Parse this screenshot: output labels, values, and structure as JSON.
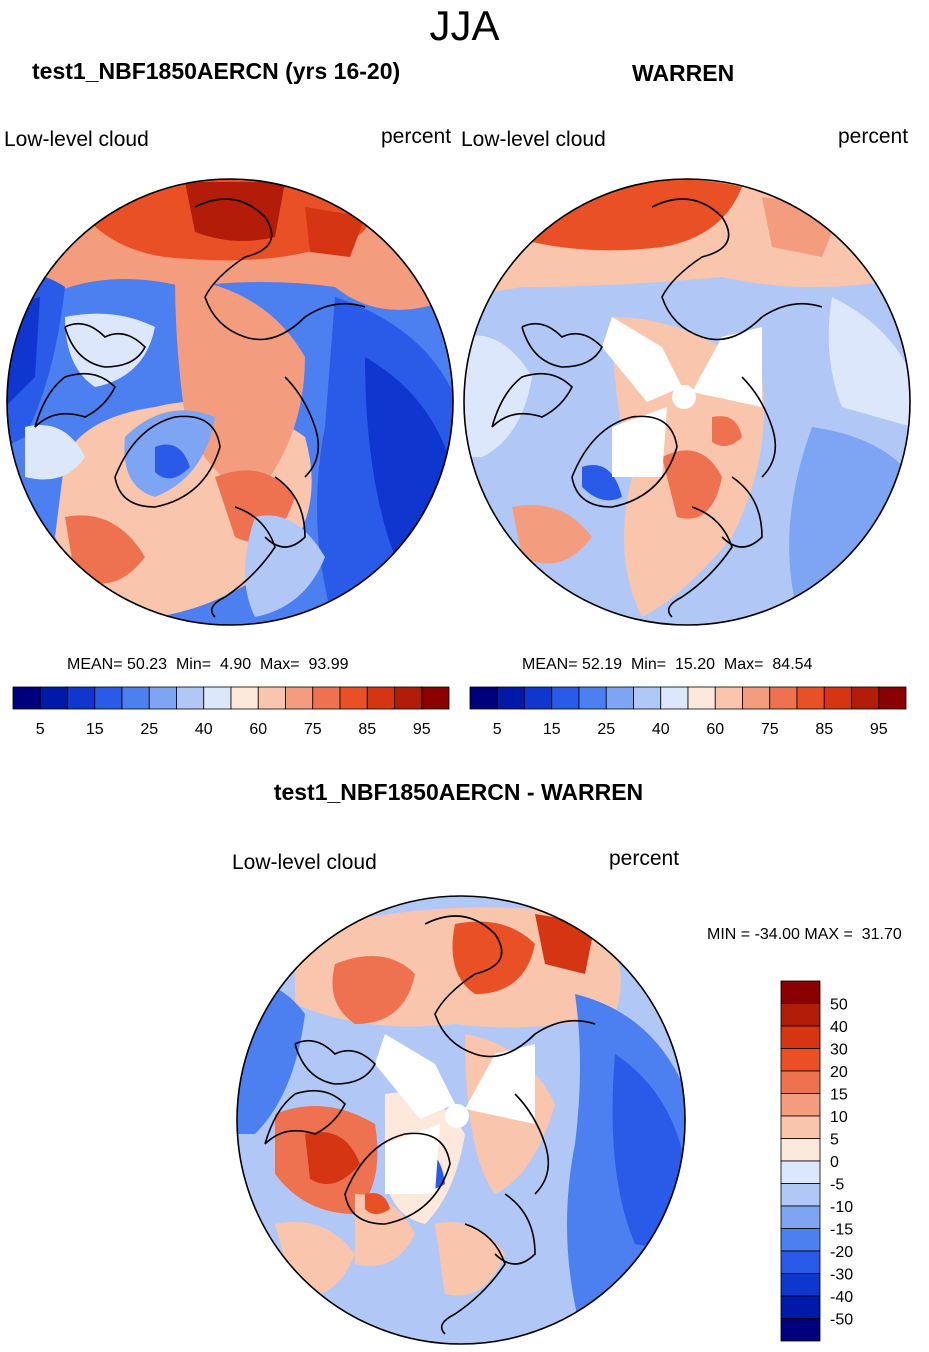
{
  "season": "JJA",
  "panels": [
    {
      "title": "test1_NBF1850AERCN (yrs 16-20)",
      "variable": "Low-level cloud",
      "units": "percent",
      "stats": {
        "mean": "50.23",
        "min": "4.90",
        "max": "93.99"
      }
    },
    {
      "title": "WARREN",
      "variable": "Low-level cloud",
      "units": "percent",
      "stats": {
        "mean": "52.19",
        "min": "15.20",
        "max": "84.54"
      }
    }
  ],
  "diff_panel": {
    "title": "test1_NBF1850AERCN - WARREN",
    "variable": "Low-level cloud",
    "units": "percent",
    "minmax": "MIN = -34.00 MAX =  31.70"
  },
  "colorbar_top": {
    "colors": [
      "#00007f",
      "#0019a8",
      "#0f37d0",
      "#2a5be8",
      "#4c7ff0",
      "#7ea4f4",
      "#b1c8f7",
      "#dde7fb",
      "#fde8dc",
      "#fac5ad",
      "#f49c7e",
      "#ee7150",
      "#ea5026",
      "#d53512",
      "#b21c08",
      "#8b0000"
    ],
    "tick_labels": [
      "5",
      "15",
      "25",
      "40",
      "60",
      "75",
      "85",
      "95"
    ]
  },
  "colorbar_diff": {
    "colors": [
      "#8b0000",
      "#b21c08",
      "#d53512",
      "#ea5026",
      "#ee7150",
      "#f49c7e",
      "#fac5ad",
      "#fde8dc",
      "#dde7fb",
      "#b1c8f7",
      "#7ea4f4",
      "#4c7ff0",
      "#2a5be8",
      "#0f37d0",
      "#0019a8",
      "#00007f"
    ],
    "tick_labels": [
      "50",
      "40",
      "30",
      "20",
      "15",
      "10",
      "5",
      "0",
      "-5",
      "-10",
      "-15",
      "-20",
      "-30",
      "-40",
      "-50"
    ]
  },
  "stat_labels": {
    "mean": "MEAN=",
    "min": "Min=",
    "max": "Max="
  }
}
